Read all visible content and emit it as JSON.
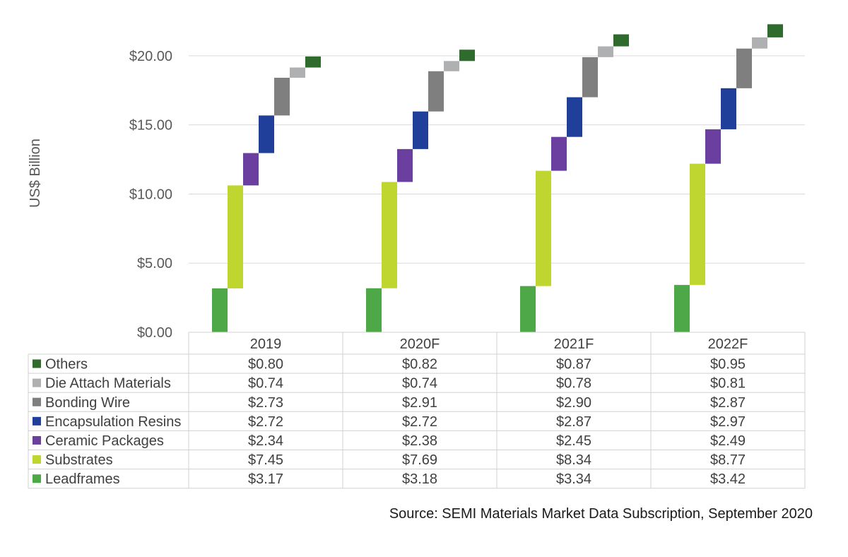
{
  "source": "Source: SEMI Materials Market Data Subscription, September 2020",
  "chart_data": {
    "type": "bar",
    "subtype": "stacked-waterfall",
    "ylabel": "US$ Billion",
    "ylim": [
      0,
      22.5
    ],
    "yticks": [
      "$0.00",
      "$5.00",
      "$10.00",
      "$15.00",
      "$20.00"
    ],
    "ytick_values": [
      0,
      5,
      10,
      15,
      20
    ],
    "grid": true,
    "legend": "data-table",
    "categories": [
      "2019",
      "2020F",
      "2021F",
      "2022F"
    ],
    "series": [
      {
        "name": "Leadframes",
        "color": "#4ea848",
        "values": [
          3.17,
          3.18,
          3.34,
          3.42
        ],
        "labels": [
          "$3.17",
          "$3.18",
          "$3.34",
          "$3.42"
        ]
      },
      {
        "name": "Substrates",
        "color": "#bfd630",
        "values": [
          7.45,
          7.69,
          8.34,
          8.77
        ],
        "labels": [
          "$7.45",
          "$7.69",
          "$8.34",
          "$8.77"
        ]
      },
      {
        "name": "Ceramic Packages",
        "color": "#6b3fa0",
        "values": [
          2.34,
          2.38,
          2.45,
          2.49
        ],
        "labels": [
          "$2.34",
          "$2.38",
          "$2.45",
          "$2.49"
        ]
      },
      {
        "name": "Encapsulation Resins",
        "color": "#1f3f9a",
        "values": [
          2.72,
          2.72,
          2.87,
          2.97
        ],
        "labels": [
          "$2.72",
          "$2.72",
          "$2.87",
          "$2.97"
        ]
      },
      {
        "name": "Bonding Wire",
        "color": "#7f7f7f",
        "values": [
          2.73,
          2.91,
          2.9,
          2.87
        ],
        "labels": [
          "$2.73",
          "$2.91",
          "$2.90",
          "$2.87"
        ]
      },
      {
        "name": "Die Attach Materials",
        "color": "#aeb0b2",
        "values": [
          0.74,
          0.74,
          0.78,
          0.81
        ],
        "labels": [
          "$0.74",
          "$0.74",
          "$0.78",
          "$0.81"
        ]
      },
      {
        "name": "Others",
        "color": "#2e6b2c",
        "values": [
          0.8,
          0.82,
          0.87,
          0.95
        ],
        "labels": [
          "$0.80",
          "$0.82",
          "$0.87",
          "$0.95"
        ]
      }
    ]
  }
}
